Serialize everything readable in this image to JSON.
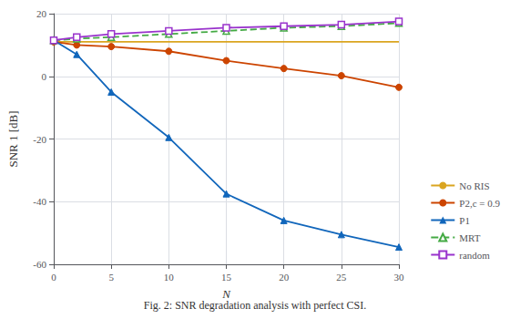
{
  "chart_data": {
    "type": "line",
    "title": "Fig. 2: SNR degradation analysis with perfect CSI.",
    "xlabel": "N",
    "ylabel": "SNR 1 [dB]",
    "x": [
      0,
      2,
      5,
      10,
      15,
      20,
      25,
      30
    ],
    "series": [
      {
        "name": "No RIS",
        "color": "#DAA520",
        "marker": "none",
        "line_style": "solid",
        "values": [
          11.0,
          11.0,
          11.0,
          11.0,
          11.0,
          11.0,
          11.0,
          11.0
        ]
      },
      {
        "name": "P2,c = 0.9",
        "color": "#CC4400",
        "marker": "circle",
        "line_style": "solid",
        "values": [
          11.0,
          10.0,
          9.5,
          8.0,
          5.0,
          2.5,
          0.2,
          -3.5
        ]
      },
      {
        "name": "P1",
        "color": "#1166BB",
        "marker": "triangle",
        "line_style": "solid",
        "values": [
          11.5,
          7.0,
          -5.0,
          -19.5,
          -37.5,
          -46.0,
          -50.5,
          -54.5
        ]
      },
      {
        "name": "MRT",
        "color": "#44AA44",
        "marker": "triangle_open",
        "line_style": "dashed",
        "values": [
          11.5,
          12.0,
          12.5,
          13.5,
          14.5,
          15.5,
          16.0,
          17.0
        ]
      },
      {
        "name": "random",
        "color": "#9933CC",
        "marker": "square_open",
        "line_style": "solid",
        "values": [
          11.5,
          12.5,
          13.5,
          14.5,
          15.5,
          16.0,
          16.5,
          17.5
        ]
      }
    ],
    "xlim": [
      0,
      30
    ],
    "ylim": [
      -60,
      20
    ],
    "xticks": [
      0,
      5,
      10,
      15,
      20,
      25,
      30
    ],
    "yticks": [
      -60,
      -40,
      -20,
      0,
      20
    ],
    "grid": true,
    "legend": "lower right"
  }
}
